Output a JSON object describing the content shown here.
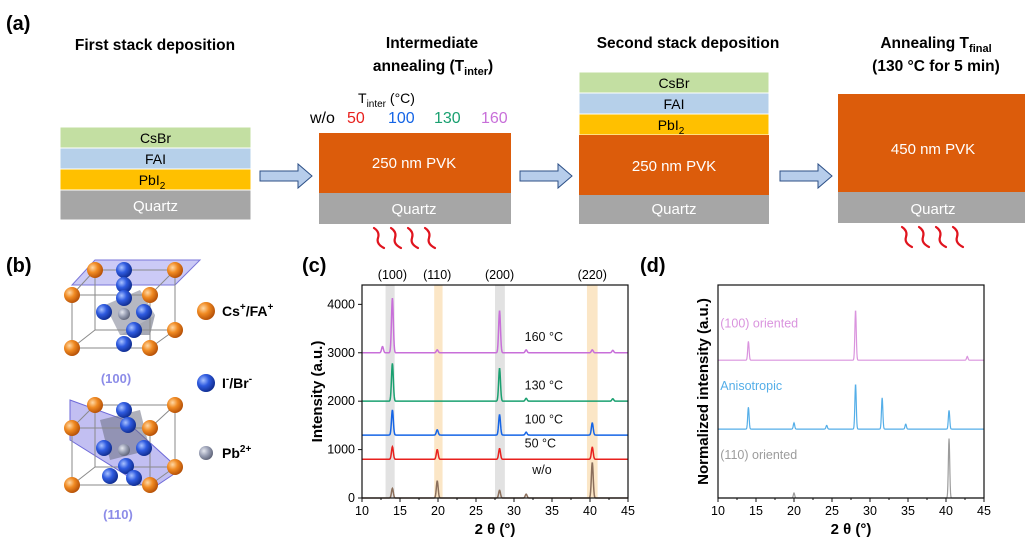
{
  "panel_a": {
    "label": "(a)",
    "steps": {
      "s1": "First stack deposition",
      "s2_line1": "Intermediate",
      "s2_line2": "annealing (T",
      "s2_sub": "inter",
      "s2_end": ")",
      "s3": "Second stack deposition",
      "s4_line1": "Annealing T",
      "s4_sub": "final",
      "s4_line2": "(130 °C for 5 min)"
    },
    "tinter_label": "T",
    "tinter_sub": "inter",
    "tinter_unit": " (°C)",
    "temps": [
      {
        "label": "w/o",
        "color": "#111111"
      },
      {
        "label": "50",
        "color": "#e8211e"
      },
      {
        "label": "100",
        "color": "#1565e6"
      },
      {
        "label": "130",
        "color": "#1aa070"
      },
      {
        "label": "160",
        "color": "#c86fd9"
      }
    ],
    "layers": {
      "csbr": "CsBr",
      "fai": "FAI",
      "pbi": "PbI",
      "pbi_sub": "2",
      "quartz": "Quartz",
      "pvk250": "250 nm PVK",
      "pvk450": "450 nm PVK"
    },
    "colors": {
      "csbr": "#c3dfa2",
      "fai": "#b6d0ea",
      "pbi": "#ffc000",
      "quartz": "#a6a6a6",
      "pvk": "#dc5c0b",
      "heat": "#e0141e",
      "arrow": "#a9c5ea"
    }
  },
  "panel_b": {
    "label": "(b)",
    "struct_100": "(100)",
    "struct_110": "(110)",
    "legend": [
      {
        "name": "cs-fa-legend",
        "text": "Cs",
        "sup": "+",
        "text2": "/FA",
        "sup2": "+",
        "color": "#ef7d12"
      },
      {
        "name": "i-br-legend",
        "text": "I",
        "sup": "-",
        "text2": "/Br",
        "sup2": "-",
        "color": "#2a52d6"
      },
      {
        "name": "pb-legend",
        "text": "Pb",
        "sup": "2+",
        "text2": "",
        "sup2": "",
        "color": "#8c92a6"
      }
    ],
    "label_color": "#8c8ce8"
  },
  "panel_c": {
    "label": "(c)",
    "chart_data": {
      "type": "line",
      "xlabel": "2 θ (°)",
      "ylabel": "Intensity (a.u.)",
      "xlim": [
        10,
        45
      ],
      "ylim": [
        0,
        4400
      ],
      "xticks": [
        10,
        15,
        20,
        25,
        30,
        35,
        40,
        45
      ],
      "yticks": [
        0,
        1000,
        2000,
        3000,
        4000
      ],
      "peak_labels": [
        {
          "text": "(100)",
          "x": 14.0
        },
        {
          "text": "(110)",
          "x": 19.9
        },
        {
          "text": "(200)",
          "x": 28.1
        },
        {
          "text": "(220)",
          "x": 40.3
        }
      ],
      "bands": [
        {
          "x0": 13.1,
          "x1": 14.3,
          "color": "#e2e2e2"
        },
        {
          "x0": 19.5,
          "x1": 20.6,
          "color": "#fbe6c6"
        },
        {
          "x0": 27.5,
          "x1": 28.8,
          "color": "#e2e2e2"
        },
        {
          "x0": 39.6,
          "x1": 41.0,
          "color": "#fbe6c6"
        }
      ],
      "series": [
        {
          "name": "160 °C",
          "label_x": 31.4,
          "label_y": 3240,
          "color": "#c86fd9",
          "baseline": 3000,
          "peaks": [
            [
              12.7,
              130
            ],
            [
              14.0,
              1130
            ],
            [
              19.9,
              60
            ],
            [
              28.1,
              870
            ],
            [
              31.6,
              60
            ],
            [
              40.3,
              60
            ],
            [
              43.0,
              50
            ]
          ]
        },
        {
          "name": "130 °C",
          "label_x": 31.4,
          "label_y": 2240,
          "color": "#1aa070",
          "baseline": 2000,
          "peaks": [
            [
              14.0,
              780
            ],
            [
              28.1,
              680
            ],
            [
              31.6,
              60
            ],
            [
              43.0,
              50
            ]
          ]
        },
        {
          "name": "100 °C",
          "label_x": 31.4,
          "label_y": 1540,
          "color": "#1565e6",
          "baseline": 1300,
          "peaks": [
            [
              14.0,
              520
            ],
            [
              19.9,
              110
            ],
            [
              28.1,
              420
            ],
            [
              31.6,
              60
            ],
            [
              40.3,
              250
            ]
          ]
        },
        {
          "name": "50 °C",
          "label_x": 31.4,
          "label_y": 1040,
          "color": "#e8211e",
          "baseline": 800,
          "peaks": [
            [
              14.0,
              260
            ],
            [
              19.9,
              200
            ],
            [
              28.1,
              220
            ],
            [
              40.3,
              250
            ]
          ]
        },
        {
          "name": "w/o",
          "label_x": 32.4,
          "label_y": 500,
          "color": "#8b6f5c",
          "baseline": 0,
          "peaks": [
            [
              14.0,
              200
            ],
            [
              19.9,
              350
            ],
            [
              28.1,
              160
            ],
            [
              31.6,
              80
            ],
            [
              40.3,
              730
            ]
          ]
        }
      ]
    }
  },
  "panel_d": {
    "label": "(d)",
    "chart_data": {
      "type": "line",
      "xlabel": "2 θ (°)",
      "ylabel": "Normalized intensity (a.u.)",
      "xlim": [
        10,
        45
      ],
      "ylim": [
        0,
        3.4
      ],
      "xticks": [
        10,
        15,
        20,
        25,
        30,
        35,
        40,
        45
      ],
      "series": [
        {
          "name": "(100) oriented",
          "label_x": 10.3,
          "label_y": 2.72,
          "color": "#da94de",
          "baseline": 2.2,
          "peaks": [
            [
              14.0,
              0.3
            ],
            [
              28.1,
              0.8
            ],
            [
              42.8,
              0.06
            ]
          ]
        },
        {
          "name": "Anisotropic",
          "label_x": 10.3,
          "label_y": 1.72,
          "color": "#54aee8",
          "baseline": 1.1,
          "peaks": [
            [
              14.0,
              0.35
            ],
            [
              20.0,
              0.1
            ],
            [
              24.3,
              0.06
            ],
            [
              28.1,
              0.72
            ],
            [
              31.6,
              0.5
            ],
            [
              34.7,
              0.08
            ],
            [
              40.4,
              0.3
            ]
          ]
        },
        {
          "name": "(110) oriented",
          "label_x": 10.3,
          "label_y": 0.62,
          "color": "#9c9c9c",
          "baseline": 0.0,
          "peaks": [
            [
              20.0,
              0.08
            ],
            [
              40.4,
              0.95
            ]
          ]
        }
      ]
    }
  }
}
